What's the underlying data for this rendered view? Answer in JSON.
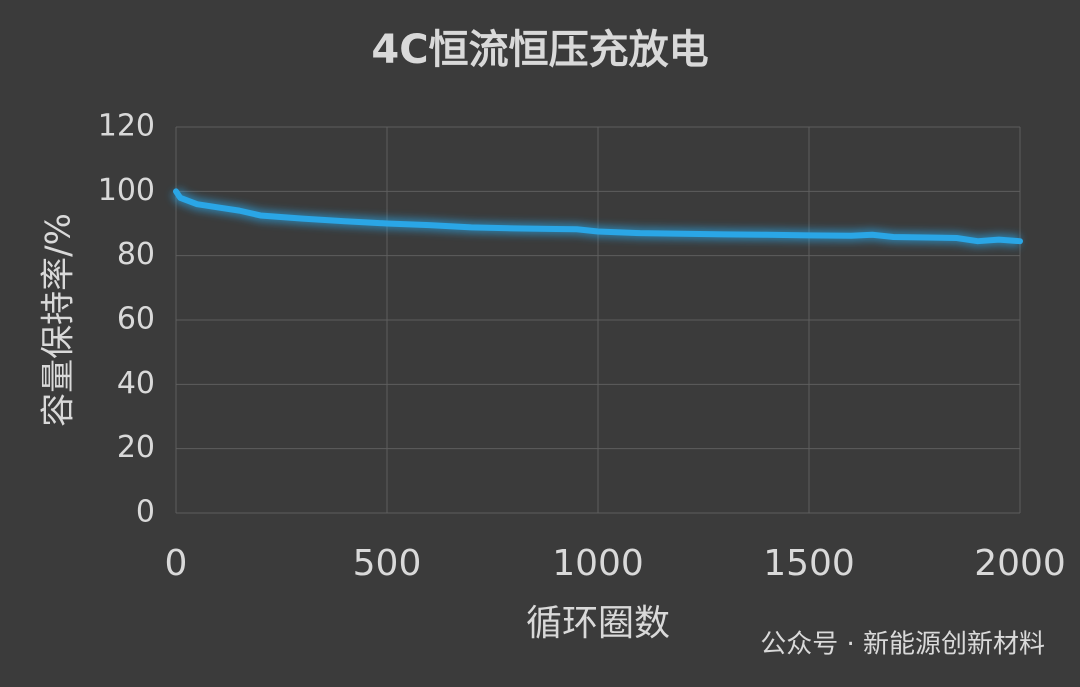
{
  "chart_data": {
    "type": "line",
    "title": "4C恒流恒压充放电",
    "x_label": "循环圈数",
    "y_label": "容量保持率/%",
    "watermark": "公众号 · 新能源创新材料",
    "x": [
      0,
      10,
      50,
      100,
      150,
      200,
      300,
      400,
      500,
      600,
      700,
      800,
      900,
      950,
      1000,
      1100,
      1200,
      1300,
      1400,
      1500,
      1600,
      1650,
      1700,
      1800,
      1850,
      1900,
      1950,
      2000
    ],
    "series": [
      {
        "name": "容量保持率",
        "color": "#2aa6e6",
        "values": [
          100,
          98,
          96,
          95,
          94,
          92.5,
          91.5,
          90.7,
          90,
          89.5,
          88.8,
          88.5,
          88.3,
          88.2,
          87.5,
          87,
          86.8,
          86.6,
          86.5,
          86.3,
          86.2,
          86.5,
          85.8,
          85.6,
          85.5,
          84.5,
          85,
          84.5
        ]
      }
    ],
    "xlim": [
      0,
      2000
    ],
    "xticks": [
      0,
      500,
      1000,
      1500,
      2000
    ],
    "ylim": [
      0,
      120
    ],
    "yticks": [
      0,
      20,
      40,
      60,
      80,
      100,
      120
    ],
    "grid": true
  }
}
